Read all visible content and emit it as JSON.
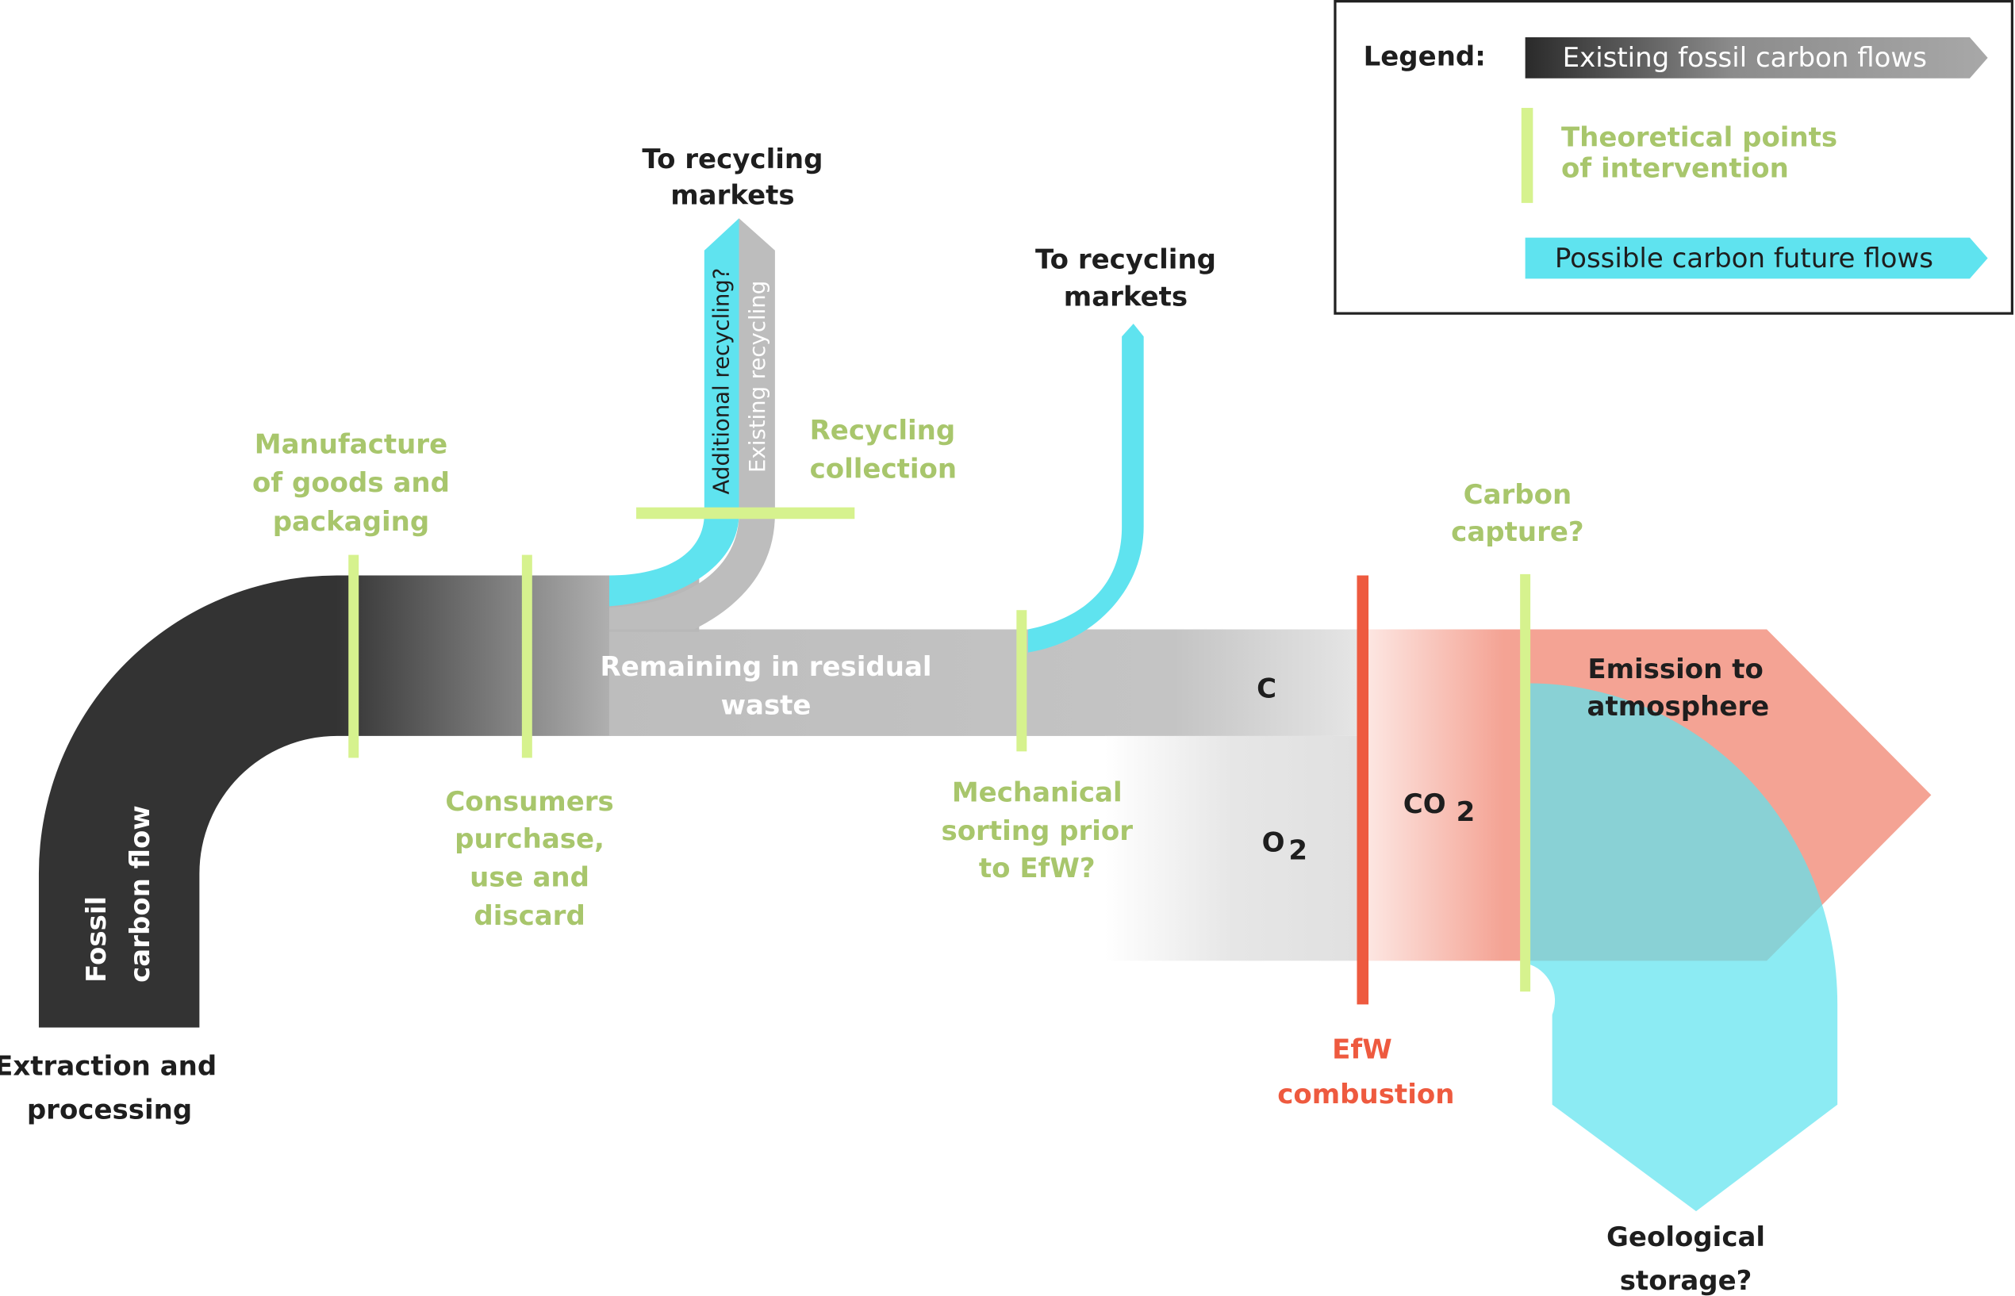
{
  "colors": {
    "fossil_dark": "#333333",
    "existing_gray": "#c0c0c0",
    "intervention_green": "#d6f28e",
    "future_cyan": "#5fe3ef",
    "emission_red": "#f4a394",
    "efw_red": "#ee5a3f",
    "label_green": "#a8c66c"
  },
  "legend": {
    "title": "Legend:",
    "existing": "Existing fossil carbon flows",
    "intervention": [
      "Theoretical points",
      "of intervention"
    ],
    "future": "Possible carbon future flows"
  },
  "flow_labels": {
    "fossil": [
      "Fossil",
      "carbon flow"
    ],
    "extraction": [
      "Extraction and",
      "processing"
    ],
    "residual": [
      "Remaining in residual",
      "waste"
    ],
    "recycling_markets_1": [
      "To recycling",
      "markets"
    ],
    "recycling_markets_2": [
      "To recycling",
      "markets"
    ],
    "additional_recycling": "Additional recycling?",
    "existing_recycling": "Existing recycling",
    "c": "C",
    "o2": "O",
    "o2_sub": "2",
    "co2": "CO",
    "co2_sub": "2",
    "emission": [
      "Emission to",
      "atmosphere"
    ],
    "geological": [
      "Geological",
      "storage?"
    ]
  },
  "intervention_labels": {
    "manufacture": [
      "Manufacture",
      "of goods and",
      "packaging"
    ],
    "consumers": [
      "Consumers",
      "purchase,",
      "use and",
      "discard"
    ],
    "recycling_collection": [
      "Recycling",
      "collection"
    ],
    "mechanical": [
      "Mechanical",
      "sorting prior",
      "to EfW?"
    ],
    "carbon_capture": [
      "Carbon",
      "capture?"
    ],
    "efw": [
      "EfW",
      "combustion"
    ]
  }
}
